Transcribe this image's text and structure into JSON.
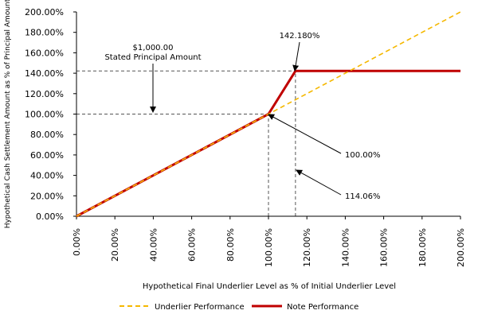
{
  "chart_data": {
    "type": "line",
    "title": "",
    "xlabel": "Hypothetical Final Underlier Level as % of Initial Underlier Level",
    "ylabel": "Hypothetical Cash Settlement Amount as % of Principal Amount",
    "xlim": [
      0,
      200
    ],
    "ylim": [
      0,
      200
    ],
    "x_ticks": [
      0,
      20,
      40,
      60,
      80,
      100,
      120,
      140,
      160,
      180,
      200
    ],
    "y_ticks": [
      0,
      20,
      40,
      60,
      80,
      100,
      120,
      140,
      160,
      180,
      200
    ],
    "x_tick_labels": [
      "0.00%",
      "20.00%",
      "40.00%",
      "60.00%",
      "80.00%",
      "100.00%",
      "120.00%",
      "140.00%",
      "160.00%",
      "180.00%",
      "200.00%"
    ],
    "y_tick_labels": [
      "0.00%",
      "20.00%",
      "40.00%",
      "60.00%",
      "80.00%",
      "100.00%",
      "120.00%",
      "140.00%",
      "160.00%",
      "180.00%",
      "200.00%"
    ],
    "series": [
      {
        "name": "Underlier Performance",
        "style": "dashed",
        "color": "#F5B800",
        "x": [
          0,
          200
        ],
        "y": [
          0,
          200
        ]
      },
      {
        "name": "Note Performance",
        "style": "solid",
        "color": "#C00000",
        "x": [
          0,
          100,
          114.06,
          200
        ],
        "y": [
          0,
          100,
          142.18,
          142.18
        ]
      }
    ],
    "reference_lines": [
      {
        "orientation": "horizontal",
        "value": 100,
        "from": 0,
        "to": 100
      },
      {
        "orientation": "horizontal",
        "value": 142.18,
        "from": 0,
        "to": 114.06
      },
      {
        "orientation": "vertical",
        "value": 100,
        "from": 0,
        "to": 100
      },
      {
        "orientation": "vertical",
        "value": 114.06,
        "from": 0,
        "to": 142.18
      }
    ],
    "annotations": {
      "principal_line1": "$1,000.00",
      "principal_line2": "Stated Principal Amount",
      "cap_label": "142.180%",
      "hundred_label": "100.00%",
      "x114_label": "114.06%"
    },
    "legend": {
      "placement": "bottom",
      "items": [
        "Underlier Performance",
        "Note Performance"
      ]
    }
  }
}
